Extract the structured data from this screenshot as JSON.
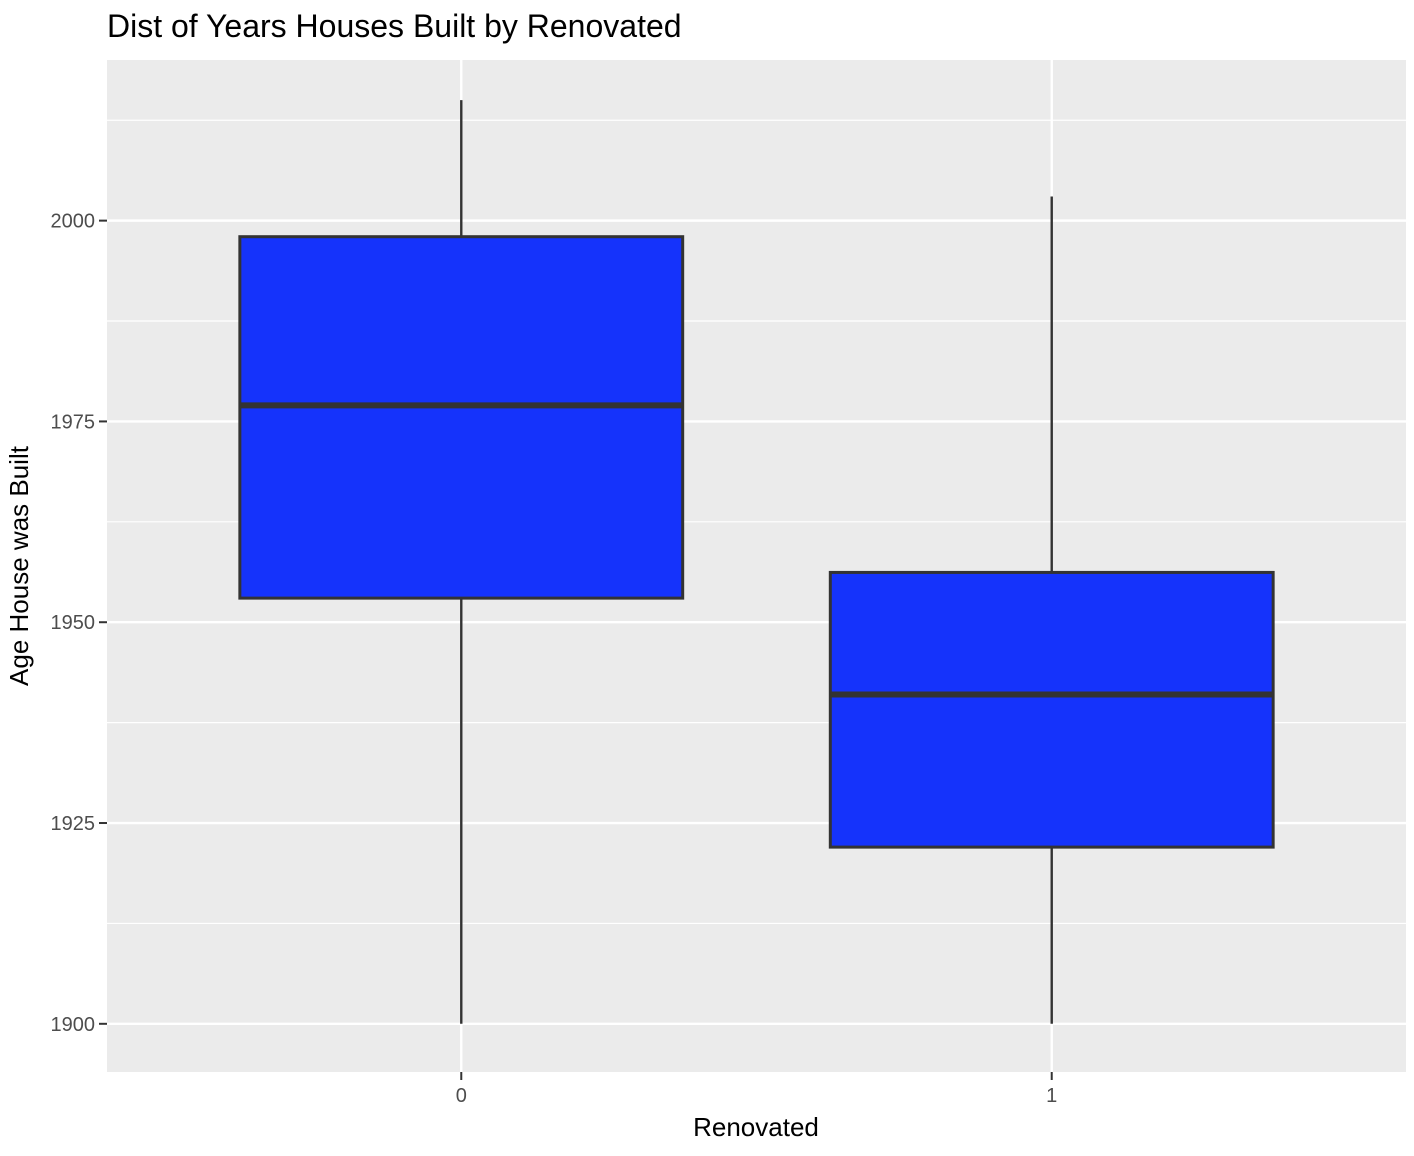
{
  "chart_data": {
    "type": "box",
    "title": "Dist of Years Houses Built by Renovated",
    "xlabel": "Renovated",
    "ylabel": "Age House was Built",
    "categories": [
      "0",
      "1"
    ],
    "boxes": [
      {
        "category": "0",
        "whisker_low": 1900,
        "q1": 1953,
        "median": 1977,
        "q3": 1998,
        "whisker_high": 2015
      },
      {
        "category": "1",
        "whisker_low": 1900,
        "q1": 1922,
        "median": 1941,
        "q3": 1956.2,
        "whisker_high": 2003
      }
    ],
    "yticks": [
      1900,
      1925,
      1950,
      1975,
      2000
    ],
    "ylim": [
      1894,
      2020
    ],
    "fill_color": "#1533fb",
    "stroke_color": "#333333",
    "panel_background": "#ebebeb",
    "grid": true
  }
}
